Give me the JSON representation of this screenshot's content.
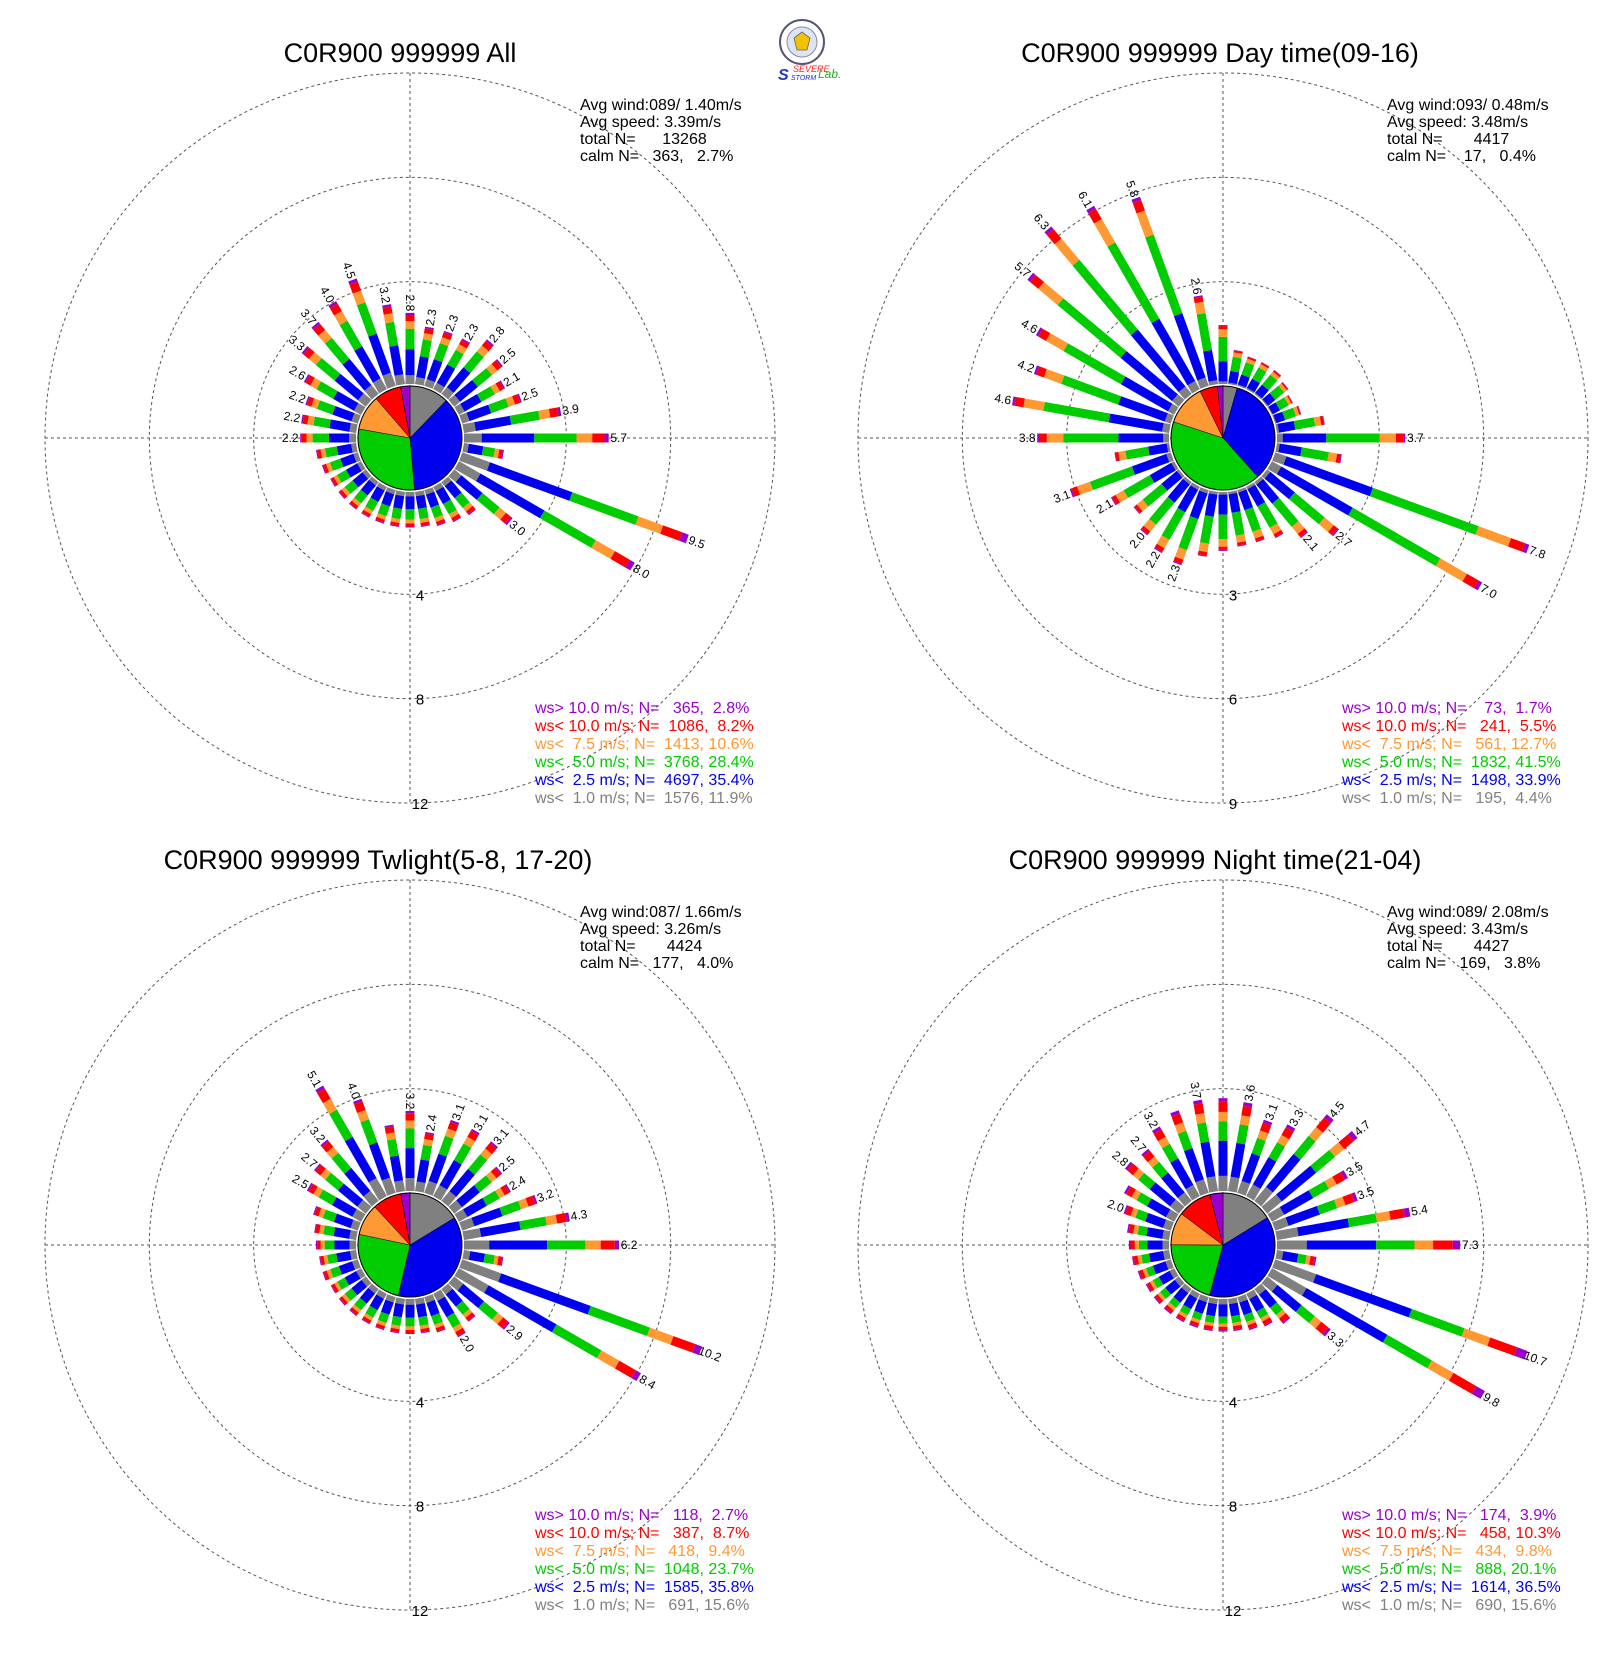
{
  "logo": {
    "text1": "SEVERE",
    "text2": "STORM",
    "text3": "Lab."
  },
  "colors": {
    "gray": "#808080",
    "blue": "#0000ee",
    "green": "#00cc00",
    "orange": "#ff9933",
    "red": "#ff0000",
    "purple": "#9900cc"
  },
  "chart_data": [
    {
      "type": "wind-rose",
      "title": "C0R900 999999 All",
      "stats": {
        "avg_wind": "Avg wind:089/ 1.40m/s",
        "avg_speed": "Avg speed: 3.39m/s",
        "total": "total N=      13268",
        "calm": "calm N=   363,   2.7%"
      },
      "ring_labels": [
        "4",
        "8",
        "12"
      ],
      "rmax": 12,
      "legend": [
        {
          "text": "ws> 10.0 m/s; N=   365,  2.8%",
          "color": "#9900cc"
        },
        {
          "text": "ws< 10.0 m/s; N=  1086,  8.2%",
          "color": "#ff0000"
        },
        {
          "text": "ws<  7.5 m/s; N=  1413, 10.6%",
          "color": "#ff9933"
        },
        {
          "text": "ws<  5.0 m/s; N=  3768, 28.4%",
          "color": "#00cc00"
        },
        {
          "text": "ws<  2.5 m/s; N=  4697, 35.4%",
          "color": "#0000ee"
        },
        {
          "text": "ws<  1.0 m/s; N=  1576, 11.9%",
          "color": "#808080"
        }
      ],
      "pie": [
        11.9,
        35.4,
        28.4,
        10.6,
        8.2,
        2.8
      ],
      "directions": [
        {
          "dir": 10,
          "total": 2.3,
          "label": "2.3"
        },
        {
          "dir": 20,
          "total": 2.3,
          "label": "2.3"
        },
        {
          "dir": 30,
          "total": 2.3,
          "label": "2.3"
        },
        {
          "dir": 40,
          "total": 2.8,
          "label": "2.8"
        },
        {
          "dir": 50,
          "total": 2.5,
          "label": "2.5"
        },
        {
          "dir": 60,
          "total": 2.1,
          "label": "2.1"
        },
        {
          "dir": 70,
          "total": 2.5,
          "label": "2.5"
        },
        {
          "dir": 80,
          "total": 3.9,
          "label": "3.9"
        },
        {
          "dir": 90,
          "total": 5.7,
          "label": "5.7"
        },
        {
          "dir": 100,
          "total": 1.6,
          "label": ""
        },
        {
          "dir": 110,
          "total": 9.5,
          "label": "9.5"
        },
        {
          "dir": 120,
          "total": 8.0,
          "label": "8.0"
        },
        {
          "dir": 130,
          "total": 3.0,
          "label": "3.0"
        },
        {
          "dir": 140,
          "total": 1.7,
          "label": ""
        },
        {
          "dir": 150,
          "total": 1.6,
          "label": ""
        },
        {
          "dir": 160,
          "total": 1.5,
          "label": ""
        },
        {
          "dir": 170,
          "total": 1.4,
          "label": ""
        },
        {
          "dir": 180,
          "total": 1.4,
          "label": ""
        },
        {
          "dir": 190,
          "total": 1.4,
          "label": ""
        },
        {
          "dir": 200,
          "total": 1.4,
          "label": ""
        },
        {
          "dir": 210,
          "total": 1.4,
          "label": ""
        },
        {
          "dir": 220,
          "total": 1.4,
          "label": ""
        },
        {
          "dir": 230,
          "total": 1.4,
          "label": ""
        },
        {
          "dir": 240,
          "total": 1.4,
          "label": ""
        },
        {
          "dir": 250,
          "total": 1.5,
          "label": ""
        },
        {
          "dir": 260,
          "total": 1.6,
          "label": ""
        },
        {
          "dir": 270,
          "total": 2.2,
          "label": "2.2"
        },
        {
          "dir": 280,
          "total": 2.2,
          "label": "2.2"
        },
        {
          "dir": 290,
          "total": 2.2,
          "label": "2.2"
        },
        {
          "dir": 300,
          "total": 2.6,
          "label": "2.6"
        },
        {
          "dir": 310,
          "total": 3.3,
          "label": "3.3"
        },
        {
          "dir": 320,
          "total": 3.7,
          "label": "3.7"
        },
        {
          "dir": 330,
          "total": 4.0,
          "label": "4.0"
        },
        {
          "dir": 340,
          "total": 4.5,
          "label": "4.5"
        },
        {
          "dir": 350,
          "total": 3.2,
          "label": "3.2"
        },
        {
          "dir": 360,
          "total": 2.8,
          "label": "2.8"
        }
      ]
    },
    {
      "type": "wind-rose",
      "title": "C0R900 999999 Day time(09-16)",
      "stats": {
        "avg_wind": "Avg wind:093/ 0.48m/s",
        "avg_speed": "Avg speed: 3.48m/s",
        "total": "total N=       4417",
        "calm": "calm N=    17,   0.4%"
      },
      "ring_labels": [
        "3",
        "6",
        "9"
      ],
      "rmax": 9,
      "legend": [
        {
          "text": "ws> 10.0 m/s; N=    73,  1.7%",
          "color": "#9900cc"
        },
        {
          "text": "ws< 10.0 m/s; N=   241,  5.5%",
          "color": "#ff0000"
        },
        {
          "text": "ws<  7.5 m/s; N=   561, 12.7%",
          "color": "#ff9933"
        },
        {
          "text": "ws<  5.0 m/s; N=  1832, 41.5%",
          "color": "#00cc00"
        },
        {
          "text": "ws<  2.5 m/s; N=  1498, 33.9%",
          "color": "#0000ee"
        },
        {
          "text": "ws<  1.0 m/s; N=   195,  4.4%",
          "color": "#808080"
        }
      ],
      "pie": [
        4.4,
        33.9,
        41.5,
        12.7,
        5.5,
        1.7
      ],
      "directions": [
        {
          "dir": 10,
          "total": 1.0,
          "label": ""
        },
        {
          "dir": 20,
          "total": 0.9,
          "label": ""
        },
        {
          "dir": 30,
          "total": 0.9,
          "label": ""
        },
        {
          "dir": 40,
          "total": 0.9,
          "label": ""
        },
        {
          "dir": 50,
          "total": 0.8,
          "label": ""
        },
        {
          "dir": 60,
          "total": 0.7,
          "label": ""
        },
        {
          "dir": 70,
          "total": 0.8,
          "label": ""
        },
        {
          "dir": 80,
          "total": 1.4,
          "label": ""
        },
        {
          "dir": 90,
          "total": 3.7,
          "label": "3.7"
        },
        {
          "dir": 100,
          "total": 1.9,
          "label": ""
        },
        {
          "dir": 110,
          "total": 7.8,
          "label": "7.8"
        },
        {
          "dir": 120,
          "total": 7.0,
          "label": "7.0"
        },
        {
          "dir": 130,
          "total": 2.7,
          "label": "2.7"
        },
        {
          "dir": 140,
          "total": 2.1,
          "label": "2.1"
        },
        {
          "dir": 150,
          "total": 1.7,
          "label": ""
        },
        {
          "dir": 160,
          "total": 1.6,
          "label": ""
        },
        {
          "dir": 170,
          "total": 1.6,
          "label": ""
        },
        {
          "dir": 180,
          "total": 1.7,
          "label": ""
        },
        {
          "dir": 190,
          "total": 1.9,
          "label": ""
        },
        {
          "dir": 200,
          "total": 2.3,
          "label": "2.3"
        },
        {
          "dir": 210,
          "total": 2.2,
          "label": "2.2"
        },
        {
          "dir": 220,
          "total": 2.0,
          "label": "2.0"
        },
        {
          "dir": 230,
          "total": 1.7,
          "label": ""
        },
        {
          "dir": 240,
          "total": 2.1,
          "label": "2.1"
        },
        {
          "dir": 250,
          "total": 3.1,
          "label": "3.1"
        },
        {
          "dir": 260,
          "total": 1.6,
          "label": ""
        },
        {
          "dir": 270,
          "total": 3.8,
          "label": "3.8"
        },
        {
          "dir": 280,
          "total": 4.6,
          "label": "4.6"
        },
        {
          "dir": 290,
          "total": 4.2,
          "label": "4.2"
        },
        {
          "dir": 300,
          "total": 4.6,
          "label": "4.6"
        },
        {
          "dir": 310,
          "total": 5.7,
          "label": "5.7"
        },
        {
          "dir": 320,
          "total": 6.3,
          "label": "6.3"
        },
        {
          "dir": 330,
          "total": 6.1,
          "label": "6.1"
        },
        {
          "dir": 340,
          "total": 5.8,
          "label": "5.8"
        },
        {
          "dir": 350,
          "total": 2.6,
          "label": "2.6"
        },
        {
          "dir": 360,
          "total": 1.7,
          "label": ""
        }
      ]
    },
    {
      "type": "wind-rose",
      "title": "C0R900 999999 Twlight(5-8, 17-20)",
      "stats": {
        "avg_wind": "Avg wind:087/ 1.66m/s",
        "avg_speed": "Avg speed: 3.26m/s",
        "total": "total N=       4424",
        "calm": "calm N=   177,   4.0%"
      },
      "ring_labels": [
        "4",
        "8",
        "12"
      ],
      "rmax": 12,
      "legend": [
        {
          "text": "ws> 10.0 m/s; N=   118,  2.7%",
          "color": "#9900cc"
        },
        {
          "text": "ws< 10.0 m/s; N=   387,  8.7%",
          "color": "#ff0000"
        },
        {
          "text": "ws<  7.5 m/s; N=   418,  9.4%",
          "color": "#ff9933"
        },
        {
          "text": "ws<  5.0 m/s; N=  1048, 23.7%",
          "color": "#00cc00"
        },
        {
          "text": "ws<  2.5 m/s; N=  1585, 35.8%",
          "color": "#0000ee"
        },
        {
          "text": "ws<  1.0 m/s; N=   691, 15.6%",
          "color": "#808080"
        }
      ],
      "pie": [
        15.6,
        35.8,
        23.7,
        9.4,
        8.7,
        2.7
      ],
      "directions": [
        {
          "dir": 10,
          "total": 2.4,
          "label": "2.4"
        },
        {
          "dir": 20,
          "total": 3.1,
          "label": "3.1"
        },
        {
          "dir": 30,
          "total": 3.1,
          "label": "3.1"
        },
        {
          "dir": 40,
          "total": 3.1,
          "label": "3.1"
        },
        {
          "dir": 50,
          "total": 2.5,
          "label": "2.5"
        },
        {
          "dir": 60,
          "total": 2.4,
          "label": "2.4"
        },
        {
          "dir": 70,
          "total": 3.2,
          "label": "3.2"
        },
        {
          "dir": 80,
          "total": 4.3,
          "label": "4.3"
        },
        {
          "dir": 90,
          "total": 6.2,
          "label": "6.2"
        },
        {
          "dir": 100,
          "total": 1.6,
          "label": ""
        },
        {
          "dir": 110,
          "total": 10.2,
          "label": "10.2"
        },
        {
          "dir": 120,
          "total": 8.4,
          "label": "8.4"
        },
        {
          "dir": 130,
          "total": 2.9,
          "label": "2.9"
        },
        {
          "dir": 140,
          "total": 1.7,
          "label": ""
        },
        {
          "dir": 150,
          "total": 2.0,
          "label": "2.0"
        },
        {
          "dir": 160,
          "total": 1.5,
          "label": ""
        },
        {
          "dir": 170,
          "total": 1.4,
          "label": ""
        },
        {
          "dir": 180,
          "total": 1.4,
          "label": ""
        },
        {
          "dir": 190,
          "total": 1.4,
          "label": ""
        },
        {
          "dir": 200,
          "total": 1.4,
          "label": ""
        },
        {
          "dir": 210,
          "total": 1.4,
          "label": ""
        },
        {
          "dir": 220,
          "total": 1.4,
          "label": ""
        },
        {
          "dir": 230,
          "total": 1.4,
          "label": ""
        },
        {
          "dir": 240,
          "total": 1.4,
          "label": ""
        },
        {
          "dir": 250,
          "total": 1.5,
          "label": ""
        },
        {
          "dir": 260,
          "total": 1.5,
          "label": ""
        },
        {
          "dir": 270,
          "total": 1.6,
          "label": ""
        },
        {
          "dir": 280,
          "total": 1.7,
          "label": ""
        },
        {
          "dir": 290,
          "total": 1.9,
          "label": ""
        },
        {
          "dir": 300,
          "total": 2.5,
          "label": "2.5"
        },
        {
          "dir": 310,
          "total": 2.7,
          "label": "2.7"
        },
        {
          "dir": 320,
          "total": 3.2,
          "label": "3.2"
        },
        {
          "dir": 330,
          "total": 5.1,
          "label": "5.1"
        },
        {
          "dir": 340,
          "total": 4.0,
          "label": "4.0"
        },
        {
          "dir": 350,
          "total": 2.7,
          "label": ""
        },
        {
          "dir": 360,
          "total": 3.2,
          "label": "3.2"
        }
      ]
    },
    {
      "type": "wind-rose",
      "title": "C0R900 999999 Night time(21-04)",
      "stats": {
        "avg_wind": "Avg wind:089/ 2.08m/s",
        "avg_speed": "Avg speed: 3.43m/s",
        "total": "total N=       4427",
        "calm": "calm N=   169,   3.8%"
      },
      "ring_labels": [
        "4",
        "8",
        "12"
      ],
      "rmax": 12,
      "legend": [
        {
          "text": "ws> 10.0 m/s; N=   174,  3.9%",
          "color": "#9900cc"
        },
        {
          "text": "ws< 10.0 m/s; N=   458, 10.3%",
          "color": "#ff0000"
        },
        {
          "text": "ws<  7.5 m/s; N=   434,  9.8%",
          "color": "#ff9933"
        },
        {
          "text": "ws<  5.0 m/s; N=   888, 20.1%",
          "color": "#00cc00"
        },
        {
          "text": "ws<  2.5 m/s; N=  1614, 36.5%",
          "color": "#0000ee"
        },
        {
          "text": "ws<  1.0 m/s; N=   690, 15.6%",
          "color": "#808080"
        }
      ],
      "pie": [
        15.6,
        36.5,
        20.1,
        9.8,
        10.3,
        3.9
      ],
      "directions": [
        {
          "dir": 10,
          "total": 3.6,
          "label": "3.6"
        },
        {
          "dir": 20,
          "total": 3.1,
          "label": "3.1"
        },
        {
          "dir": 30,
          "total": 3.3,
          "label": "3.3"
        },
        {
          "dir": 40,
          "total": 4.5,
          "label": "4.5"
        },
        {
          "dir": 50,
          "total": 4.7,
          "label": "4.7"
        },
        {
          "dir": 60,
          "total": 3.5,
          "label": "3.5"
        },
        {
          "dir": 70,
          "total": 3.5,
          "label": "3.5"
        },
        {
          "dir": 80,
          "total": 5.4,
          "label": "5.4"
        },
        {
          "dir": 90,
          "total": 7.3,
          "label": "7.3"
        },
        {
          "dir": 100,
          "total": 1.6,
          "label": ""
        },
        {
          "dir": 110,
          "total": 10.7,
          "label": "10.7"
        },
        {
          "dir": 120,
          "total": 9.8,
          "label": "9.8"
        },
        {
          "dir": 130,
          "total": 3.3,
          "label": "3.3"
        },
        {
          "dir": 140,
          "total": 1.8,
          "label": ""
        },
        {
          "dir": 150,
          "total": 1.5,
          "label": ""
        },
        {
          "dir": 160,
          "total": 1.4,
          "label": ""
        },
        {
          "dir": 170,
          "total": 1.3,
          "label": ""
        },
        {
          "dir": 180,
          "total": 1.3,
          "label": ""
        },
        {
          "dir": 190,
          "total": 1.3,
          "label": ""
        },
        {
          "dir": 200,
          "total": 1.3,
          "label": ""
        },
        {
          "dir": 210,
          "total": 1.3,
          "label": ""
        },
        {
          "dir": 220,
          "total": 1.3,
          "label": ""
        },
        {
          "dir": 230,
          "total": 1.3,
          "label": ""
        },
        {
          "dir": 240,
          "total": 1.3,
          "label": ""
        },
        {
          "dir": 250,
          "total": 1.4,
          "label": ""
        },
        {
          "dir": 260,
          "total": 1.5,
          "label": ""
        },
        {
          "dir": 270,
          "total": 1.6,
          "label": ""
        },
        {
          "dir": 280,
          "total": 1.7,
          "label": ""
        },
        {
          "dir": 290,
          "total": 2.0,
          "label": "2.0"
        },
        {
          "dir": 300,
          "total": 2.3,
          "label": ""
        },
        {
          "dir": 310,
          "total": 2.8,
          "label": "2.8"
        },
        {
          "dir": 320,
          "total": 2.7,
          "label": "2.7"
        },
        {
          "dir": 330,
          "total": 3.2,
          "label": "3.2"
        },
        {
          "dir": 340,
          "total": 3.5,
          "label": ""
        },
        {
          "dir": 350,
          "total": 3.7,
          "label": "3.7"
        },
        {
          "dir": 360,
          "total": 3.7,
          "label": ""
        }
      ]
    }
  ]
}
